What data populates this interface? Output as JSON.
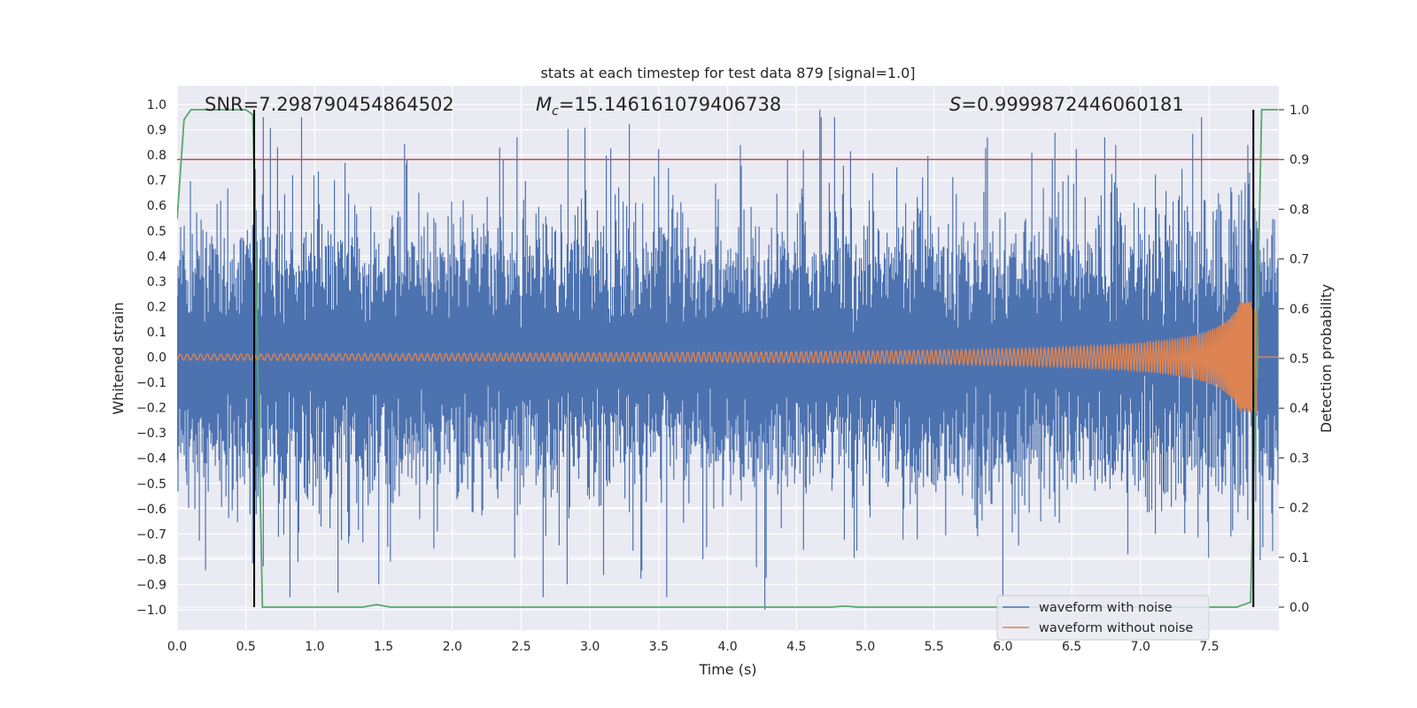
{
  "chart_data": {
    "type": "line",
    "title": "stats at each timestep for test data 879 [signal=1.0]",
    "xlabel": "Time (s)",
    "ylabel_left": "Whitened strain",
    "ylabel_right": "Detection probability",
    "xlim": [
      0.0,
      8.0
    ],
    "ylim_left": [
      -1.1,
      1.1
    ],
    "ylim_right": [
      -0.05,
      1.05
    ],
    "x_ticks": [
      "0.0",
      "0.5",
      "1.0",
      "1.5",
      "2.0",
      "2.5",
      "3.0",
      "3.5",
      "4.0",
      "4.5",
      "5.0",
      "5.5",
      "6.0",
      "6.5",
      "7.0",
      "7.5"
    ],
    "y_left_ticks": [
      "1.0",
      "0.9",
      "0.8",
      "0.7",
      "0.6",
      "0.5",
      "0.4",
      "0.3",
      "0.2",
      "0.1",
      "0.0",
      "−0.1",
      "−0.2",
      "−0.3",
      "−0.4",
      "−0.5",
      "−0.6",
      "−0.7",
      "−0.8",
      "−0.9",
      "−1.0"
    ],
    "y_right_ticks": [
      "1.0",
      "0.9",
      "0.8",
      "0.7",
      "0.6",
      "0.5",
      "0.4",
      "0.3",
      "0.2",
      "0.1",
      "0.0"
    ],
    "grid": true,
    "legend_position": "bottom-right",
    "annotations": {
      "snr": "SNR=7.298790454864502",
      "mc_symbol": "M",
      "mc_sub": "c",
      "mc_value": "=15.146161079406738",
      "s_symbol": "S",
      "s_value": "=0.9999872446060181"
    },
    "series": [
      {
        "name": "waveform with noise",
        "color": "#4c72b0",
        "axis": "left",
        "description_amplitude_typical": 0.45,
        "peak_max": 0.98,
        "peak_min": -1.0
      },
      {
        "name": "waveform without noise",
        "color": "#dd8452",
        "axis": "left",
        "chirp_start_amp": 0.01,
        "chirp_end_amp": 0.2,
        "chirp_end_time": 7.85
      }
    ],
    "detection_probability": {
      "color": "#55a868",
      "axis": "right",
      "x": [
        0.0,
        0.05,
        0.1,
        0.5,
        0.55,
        0.62,
        1.35,
        1.45,
        1.55,
        4.75,
        4.85,
        4.95,
        7.7,
        7.8,
        7.85,
        7.88,
        7.93,
        8.0
      ],
      "y": [
        0.78,
        0.98,
        1.0,
        1.0,
        0.99,
        0.0,
        0.0,
        0.005,
        0.0,
        0.0,
        0.002,
        0.0,
        0.0,
        0.01,
        0.6,
        1.0,
        1.0,
        1.0
      ]
    },
    "threshold": {
      "value": 0.9,
      "axis": "right",
      "color": "#c44e52"
    },
    "vertical_markers": [
      0.56,
      7.82
    ]
  }
}
